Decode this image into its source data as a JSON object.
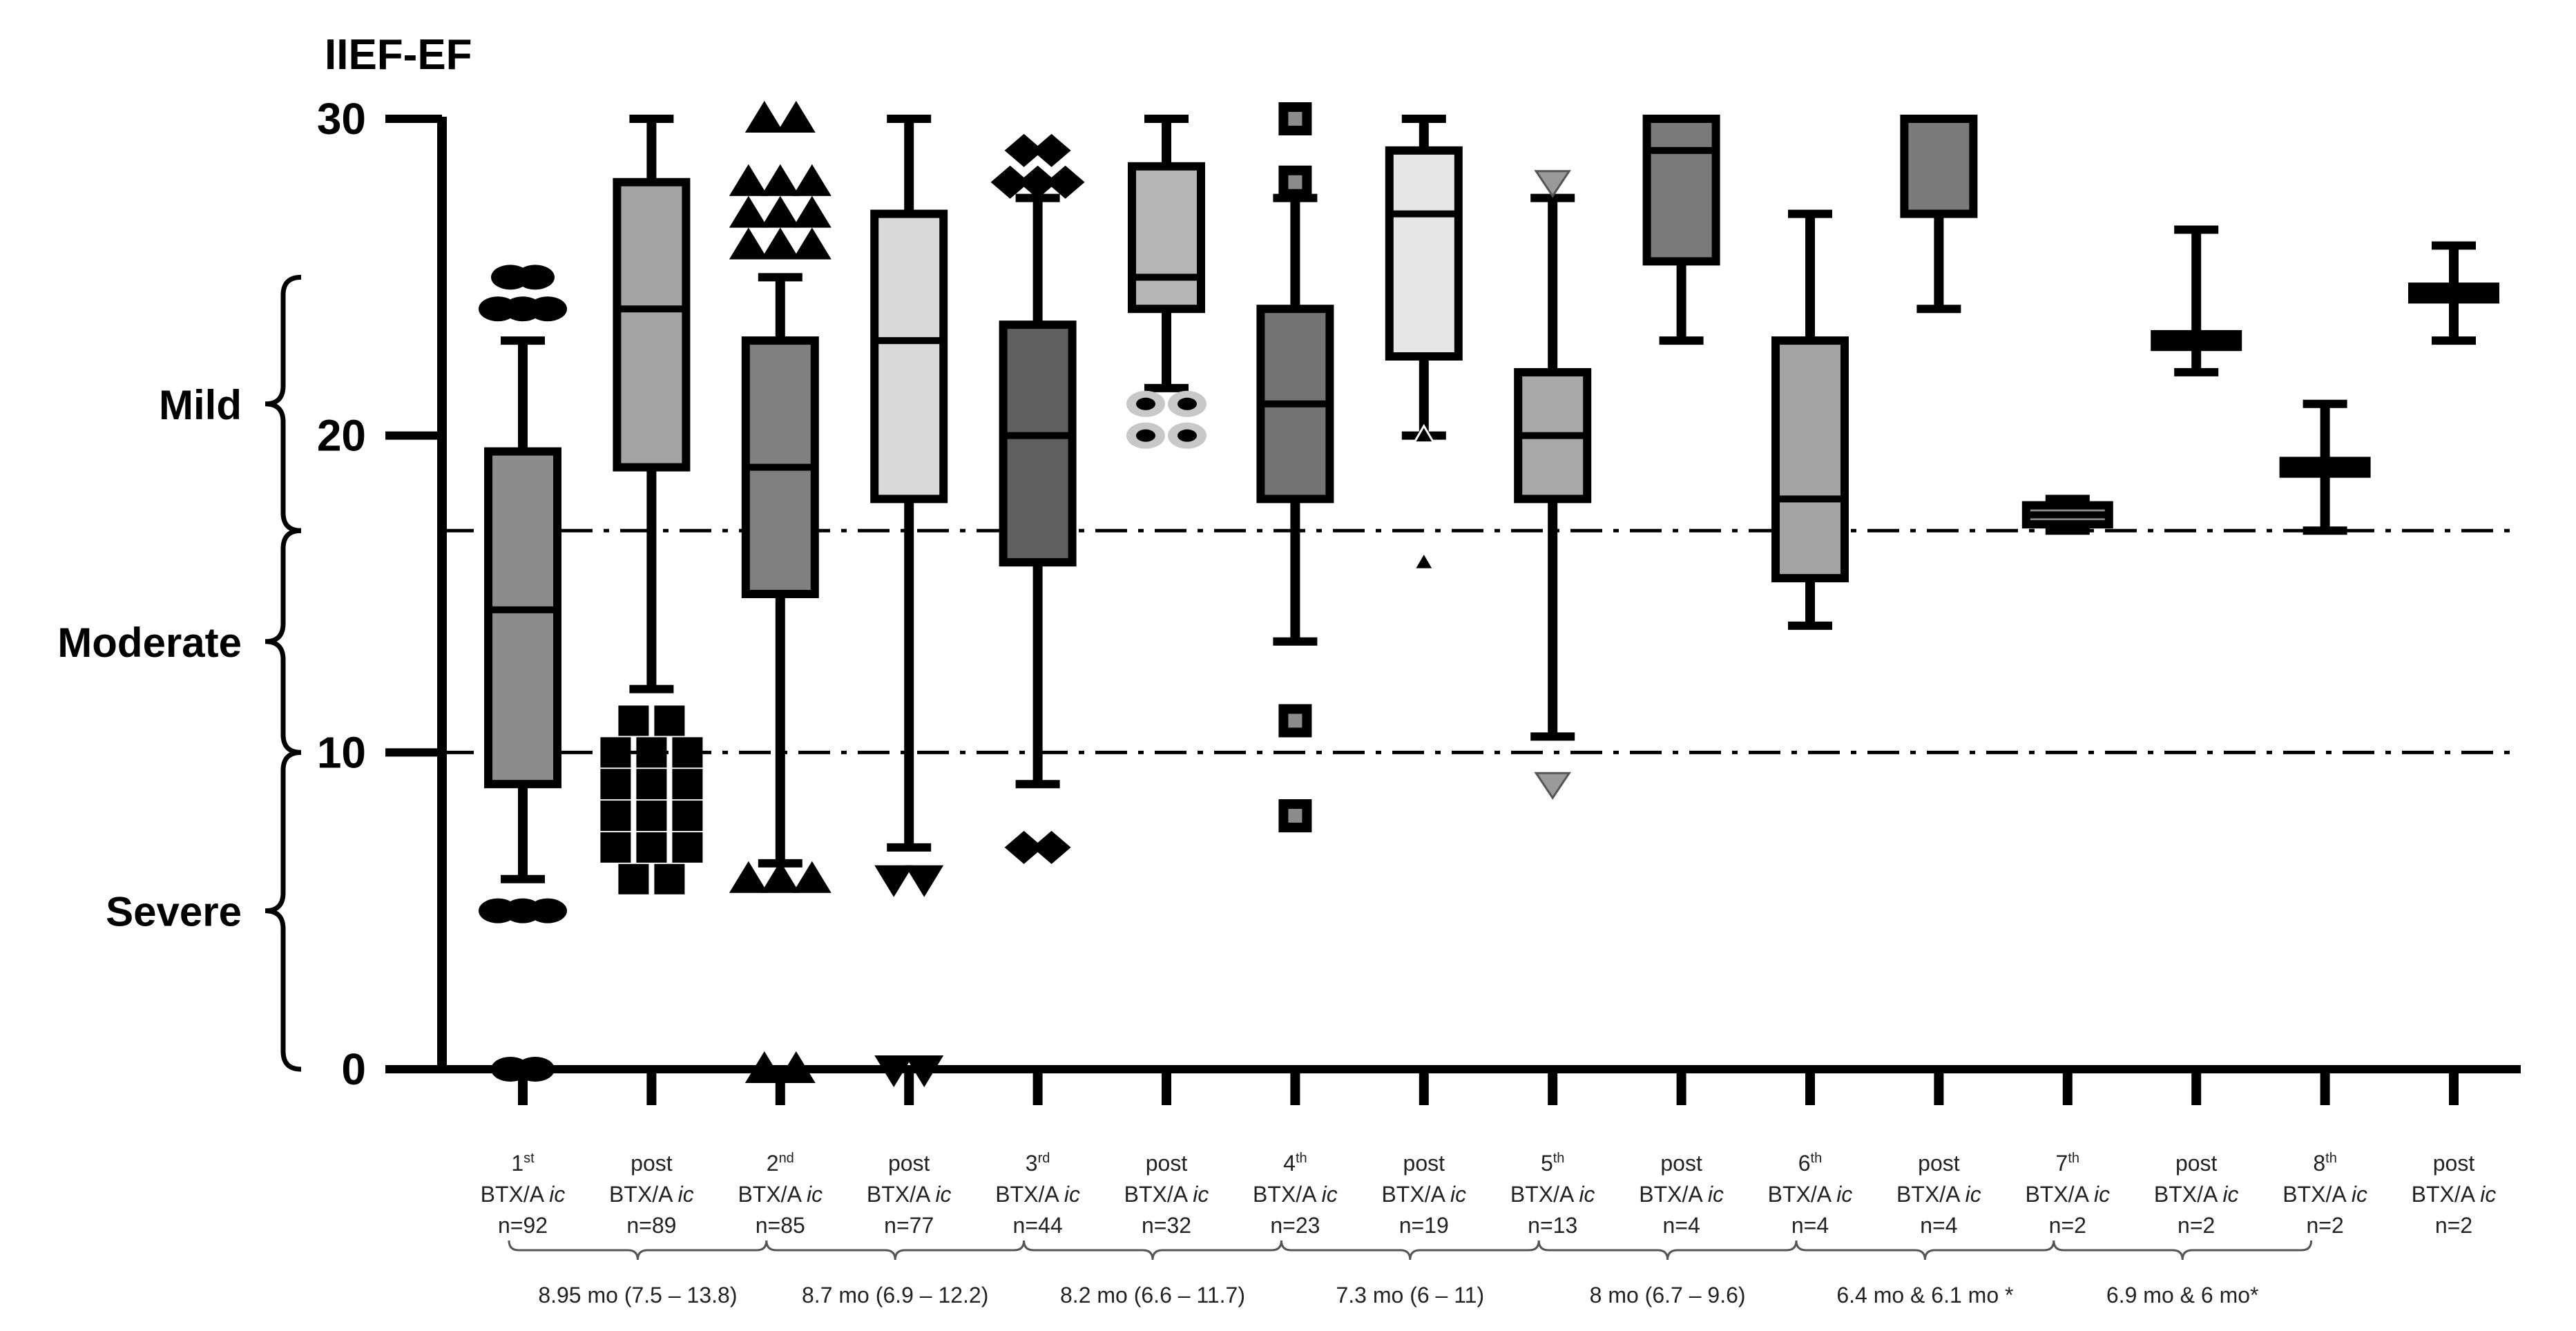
{
  "chart_data": {
    "type": "boxplot",
    "title": "IIEF-EF",
    "ylabel": "IIEF-EF",
    "ylim": [
      0,
      30
    ],
    "yticks": [
      "0",
      "10",
      "20",
      "30"
    ],
    "severity_bands": [
      {
        "label": "Mild",
        "range": [
          17,
          25
        ]
      },
      {
        "label": "Moderate",
        "range": [
          10,
          17
        ]
      },
      {
        "label": "Severe",
        "range": [
          0,
          10
        ]
      }
    ],
    "reference_lines": [
      17,
      10
    ],
    "groups": [
      {
        "label_num": "1",
        "label_sup": "st",
        "label_mid": "BTX/A ",
        "label_it": "ic",
        "label_n": "n=92",
        "fill": "#8c8c8c",
        "whisker_low": 6,
        "q1": 9,
        "median": 14.5,
        "q3": 19.5,
        "whisker_high": 23,
        "outliers": {
          "marker": "circle",
          "values": [
            25,
            24,
            5,
            0
          ]
        }
      },
      {
        "label_num": "",
        "label_sup": "",
        "label_mid": "post",
        "label_it": "",
        "label_line2": "BTX/A ",
        "label_line2_it": "ic",
        "label_n": "n=89",
        "fill": "#a3a3a3",
        "whisker_low": 12,
        "q1": 19,
        "median": 24,
        "q3": 28,
        "whisker_high": 30,
        "outliers": {
          "marker": "square",
          "values": [
            11,
            10,
            9,
            8,
            7,
            6
          ]
        }
      },
      {
        "label_num": "2",
        "label_sup": "nd",
        "label_mid": "BTX/A ",
        "label_it": "ic",
        "label_n": "n=85",
        "fill": "#808080",
        "whisker_low": 6.5,
        "q1": 15,
        "median": 19,
        "q3": 23,
        "whisker_high": 25,
        "outliers": {
          "marker": "triangle-up",
          "values": [
            30,
            28,
            27,
            26,
            6,
            0
          ]
        }
      },
      {
        "label_num": "",
        "label_sup": "",
        "label_mid": "post",
        "label_it": "",
        "label_line2": "BTX/A ",
        "label_line2_it": "ic",
        "label_n": "n=77",
        "fill": "#d9d9d9",
        "whisker_low": 7,
        "q1": 18,
        "median": 23,
        "q3": 27,
        "whisker_high": 30,
        "outliers": {
          "marker": "triangle-down",
          "values": [
            6,
            0
          ]
        }
      },
      {
        "label_num": "3",
        "label_sup": "rd",
        "label_mid": "BTX/A ",
        "label_it": "ic",
        "label_n": "n=44",
        "fill": "#5f5f5f",
        "whisker_low": 9,
        "q1": 16,
        "median": 20,
        "q3": 23.5,
        "whisker_high": 27.5,
        "outliers": {
          "marker": "diamond",
          "values": [
            29,
            28,
            7
          ]
        }
      },
      {
        "label_num": "",
        "label_sup": "",
        "label_mid": "post",
        "label_it": "",
        "label_line2": "BTX/A ",
        "label_line2_it": "ic",
        "label_n": "n=32",
        "fill": "#b5b5b5",
        "whisker_low": 21.5,
        "q1": 24,
        "median": 25,
        "q3": 28.5,
        "whisker_high": 30,
        "outliers": {
          "marker": "ring",
          "values": [
            21,
            20
          ]
        }
      },
      {
        "label_num": "4",
        "label_sup": "th",
        "label_mid": "BTX/A ",
        "label_it": "ic",
        "label_n": "n=23",
        "fill": "#737373",
        "whisker_low": 13.5,
        "q1": 18,
        "median": 21,
        "q3": 24,
        "whisker_high": 27.5,
        "outliers": {
          "marker": "square-dot",
          "values": [
            30,
            28,
            11,
            8
          ]
        }
      },
      {
        "label_num": "",
        "label_sup": "",
        "label_mid": "post",
        "label_it": "",
        "label_line2": "BTX/A ",
        "label_line2_it": "ic",
        "label_n": "n=19",
        "fill": "#e6e6e6",
        "whisker_low": 20,
        "q1": 22.5,
        "median": 27,
        "q3": 29,
        "whisker_high": 30,
        "outliers": {
          "marker": "small-triangle",
          "values": [
            20,
            16
          ]
        }
      },
      {
        "label_num": "5",
        "label_sup": "th",
        "label_mid": "BTX/A ",
        "label_it": "ic",
        "label_n": "n=13",
        "fill": "#a8a8a8",
        "whisker_low": 10.5,
        "q1": 18,
        "median": 20,
        "q3": 22,
        "whisker_high": 27.5,
        "outliers": {
          "marker": "triangle-down-grey",
          "values": [
            28,
            9
          ]
        }
      },
      {
        "label_num": "",
        "label_sup": "",
        "label_mid": "post",
        "label_it": "",
        "label_line2": "BTX/A ",
        "label_line2_it": "ic",
        "label_n": "n=4",
        "fill": "#7a7a7a",
        "whisker_low": 23,
        "q1": 25.5,
        "median": 29,
        "q3": 30,
        "whisker_high": 30,
        "outliers": {
          "marker": "none",
          "values": []
        }
      },
      {
        "label_num": "6",
        "label_sup": "th",
        "label_mid": "BTX/A ",
        "label_it": "ic",
        "label_n": "n=4",
        "fill": "#a3a3a3",
        "whisker_low": 14,
        "q1": 15.5,
        "median": 18,
        "q3": 23,
        "whisker_high": 27,
        "outliers": {
          "marker": "none",
          "values": []
        }
      },
      {
        "label_num": "",
        "label_sup": "",
        "label_mid": "post",
        "label_it": "",
        "label_line2": "BTX/A ",
        "label_line2_it": "ic",
        "label_n": "n=4",
        "fill": "#7a7a7a",
        "whisker_low": 24,
        "q1": 27,
        "median": 27,
        "q3": 30,
        "whisker_high": 30,
        "outliers": {
          "marker": "none",
          "values": []
        }
      },
      {
        "label_num": "7",
        "label_sup": "th",
        "label_mid": "BTX/A ",
        "label_it": "ic",
        "label_n": "n=2",
        "fill": "#8c8c8c",
        "whisker_low": 17,
        "q1": 17.2,
        "median": 17.5,
        "q3": 17.8,
        "whisker_high": 18,
        "outliers": {
          "marker": "none",
          "values": []
        }
      },
      {
        "label_num": "",
        "label_sup": "",
        "label_mid": "post",
        "label_it": "",
        "label_line2": "BTX/A ",
        "label_line2_it": "ic",
        "label_n": "n=2",
        "fill": "#8c8c8c",
        "whisker_low": 22,
        "q1": 22.8,
        "median": 23,
        "q3": 23.2,
        "whisker_high": 26.5,
        "outliers": {
          "marker": "none",
          "values": []
        }
      },
      {
        "label_num": "8",
        "label_sup": "th",
        "label_mid": "BTX/A ",
        "label_it": "ic",
        "label_n": "n=2",
        "fill": "#8c8c8c",
        "whisker_low": 17,
        "q1": 18.8,
        "median": 19,
        "q3": 19.2,
        "whisker_high": 21,
        "outliers": {
          "marker": "none",
          "values": []
        }
      },
      {
        "label_num": "",
        "label_sup": "",
        "label_mid": "post",
        "label_it": "",
        "label_line2": "BTX/A ",
        "label_line2_it": "ic",
        "label_n": "n=2",
        "fill": "#8c8c8c",
        "whisker_low": 23,
        "q1": 24.3,
        "median": 24.5,
        "q3": 24.7,
        "whisker_high": 26,
        "outliers": {
          "marker": "none",
          "values": []
        }
      }
    ],
    "intervals": [
      {
        "text": "8.95 mo  (7.5 – 13.8)",
        "from": 0,
        "to": 2
      },
      {
        "text": "8.7 mo  (6.9 – 12.2)",
        "from": 2,
        "to": 4
      },
      {
        "text": "8.2 mo  (6.6 – 11.7)",
        "from": 4,
        "to": 6
      },
      {
        "text": "7.3 mo  (6 – 11)",
        "from": 6,
        "to": 8
      },
      {
        "text": "8 mo  (6.7 – 9.6)",
        "from": 8,
        "to": 10
      },
      {
        "text": "6.4 mo & 6.1 mo *",
        "from": 10,
        "to": 12
      },
      {
        "text": "6.9 mo &  6 mo*",
        "from": 12,
        "to": 14
      }
    ]
  }
}
